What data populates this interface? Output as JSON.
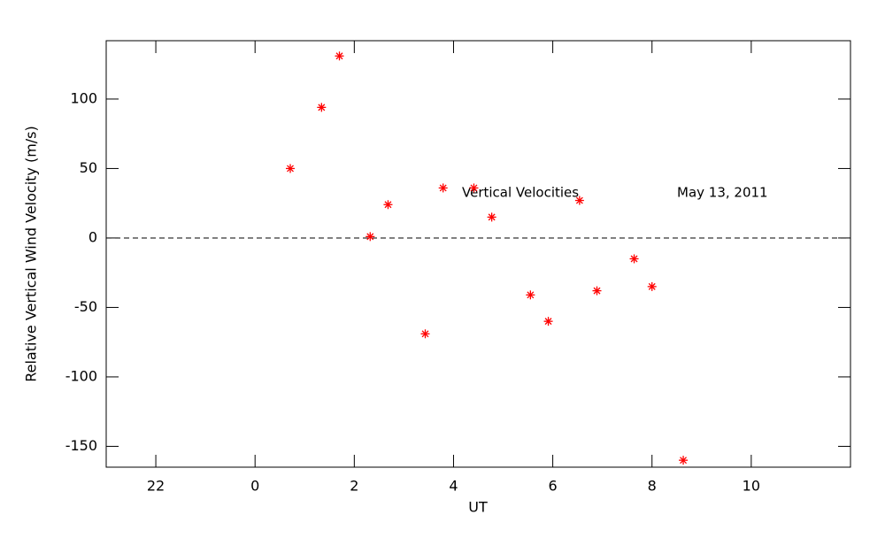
{
  "chart_data": {
    "type": "scatter",
    "xlabel": "UT",
    "ylabel": "Relative Vertical Wind Velocity (m/s)",
    "annotations": [
      "Vertical Velocities",
      "May 13, 2011"
    ],
    "x": [
      0.71,
      1.34,
      1.7,
      2.32,
      2.68,
      3.43,
      3.79,
      4.41,
      4.77,
      5.55,
      5.91,
      6.54,
      6.89,
      7.64,
      8.0,
      8.63
    ],
    "series": [
      {
        "name": "Vertical Velocities",
        "color": "#ff0000",
        "values": [
          50,
          94,
          131,
          1,
          24,
          -69,
          36,
          36,
          15,
          -41,
          -60,
          27,
          -38,
          -15,
          -35,
          -160
        ]
      }
    ],
    "xlim": [
      -3,
      12
    ],
    "xticks": [
      {
        "value": -2,
        "label": "22"
      },
      0,
      2,
      4,
      6,
      8,
      10
    ],
    "ylim": [
      -165,
      142
    ],
    "yticks": [
      -150,
      -100,
      -50,
      0,
      50,
      100
    ],
    "zero_line": true,
    "grid": false
  }
}
